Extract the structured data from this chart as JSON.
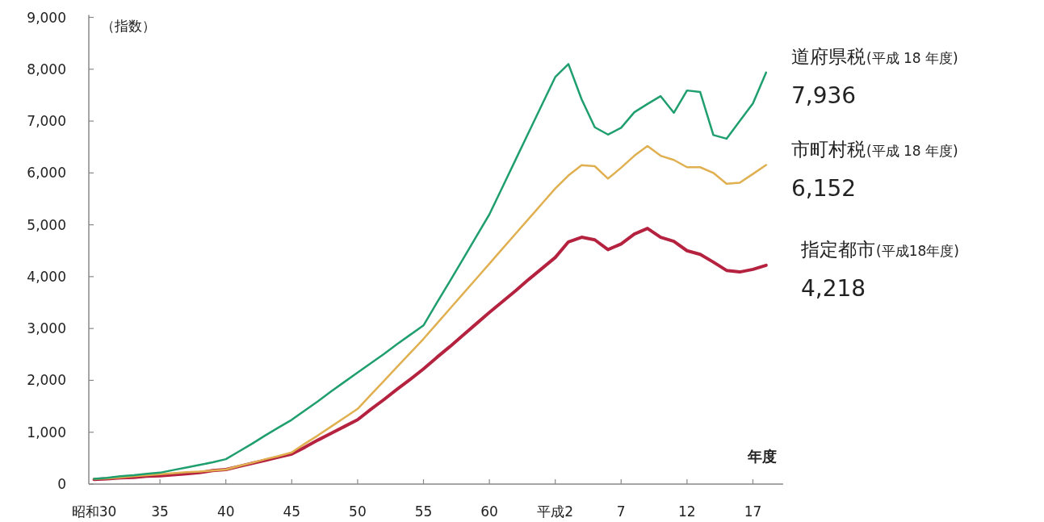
{
  "chart_data": {
    "type": "line",
    "ylabel": "（指数）",
    "xlabel": "年度",
    "categories": [
      "昭和30",
      null,
      null,
      null,
      null,
      "35",
      null,
      null,
      null,
      null,
      "40",
      null,
      null,
      null,
      null,
      "45",
      null,
      null,
      null,
      null,
      "50",
      null,
      null,
      null,
      null,
      "55",
      null,
      null,
      null,
      null,
      "60",
      null,
      null,
      null,
      null,
      "平成2",
      null,
      null,
      null,
      null,
      "7",
      null,
      null,
      null,
      null,
      "12",
      null,
      null,
      null,
      null,
      "17",
      null
    ],
    "ylim": [
      0,
      9000
    ],
    "yticks": [
      0,
      {
        "value": 1000,
        "label": "1,000"
      },
      {
        "value": 2000,
        "label": "2,000"
      },
      {
        "value": 3000,
        "label": "3,000"
      },
      {
        "value": 4000,
        "label": "4,000"
      },
      {
        "value": 5000,
        "label": "5,000"
      },
      {
        "value": 6000,
        "label": "6,000"
      },
      {
        "value": 7000,
        "label": "7,000"
      },
      {
        "value": 8000,
        "label": "8,000"
      },
      {
        "value": 9000,
        "label": "9,000"
      }
    ],
    "grid": false,
    "legend": false,
    "marker": "none",
    "line_style": "solid",
    "series": [
      {
        "name": "道府県税",
        "color": "#1f9e6e",
        "values": [
          100,
          120,
          150,
          170,
          200,
          220,
          270,
          320,
          370,
          420,
          480,
          630,
          780,
          940,
          1090,
          1240,
          1420,
          1600,
          1790,
          1970,
          2150,
          2330,
          2510,
          2700,
          2880,
          3060,
          3490,
          3910,
          4340,
          4770,
          5200,
          5730,
          6260,
          6790,
          7320,
          7850,
          8100,
          7420,
          6880,
          6740,
          6870,
          7170,
          7330,
          7480,
          7160,
          7590,
          7560,
          6730,
          6660,
          7000,
          7340,
          7936
        ],
        "value_labels": [
          null,
          null,
          null,
          null,
          null,
          null,
          null,
          null,
          null,
          null,
          null,
          null,
          null,
          null,
          null,
          null,
          null,
          null,
          null,
          null,
          null,
          null,
          null,
          null,
          null,
          null,
          null,
          null,
          null,
          null,
          null,
          null,
          null,
          null,
          null,
          null,
          null,
          null,
          null,
          null,
          null,
          null,
          null,
          null,
          null,
          null,
          null,
          null,
          null,
          null,
          null,
          "7,936"
        ]
      },
      {
        "name": "市町村税",
        "color": "#e0b050",
        "values": [
          100,
          110,
          130,
          150,
          170,
          190,
          210,
          230,
          240,
          260,
          280,
          350,
          410,
          480,
          540,
          610,
          780,
          940,
          1110,
          1280,
          1450,
          1720,
          1990,
          2260,
          2530,
          2800,
          3090,
          3380,
          3670,
          3960,
          4250,
          4540,
          4830,
          5120,
          5410,
          5700,
          5950,
          6150,
          6130,
          5890,
          6100,
          6330,
          6520,
          6330,
          6250,
          6110,
          6110,
          6000,
          5790,
          5810,
          5980,
          6152
        ],
        "value_labels": [
          null,
          null,
          null,
          null,
          null,
          null,
          null,
          null,
          null,
          null,
          null,
          null,
          null,
          null,
          null,
          null,
          null,
          null,
          null,
          null,
          null,
          null,
          null,
          null,
          null,
          null,
          null,
          null,
          null,
          null,
          null,
          null,
          null,
          null,
          null,
          null,
          null,
          null,
          null,
          null,
          null,
          null,
          null,
          null,
          null,
          null,
          null,
          null,
          null,
          null,
          null,
          "6,152"
        ]
      },
      {
        "name": "指定都市",
        "color": "#b5223f",
        "values": [
          90,
          100,
          120,
          130,
          150,
          160,
          180,
          200,
          220,
          260,
          280,
          340,
          400,
          460,
          520,
          580,
          710,
          850,
          980,
          1110,
          1240,
          1440,
          1630,
          1830,
          2020,
          2220,
          2440,
          2650,
          2870,
          3090,
          3310,
          3520,
          3730,
          3950,
          4160,
          4370,
          4670,
          4760,
          4710,
          4520,
          4630,
          4820,
          4930,
          4760,
          4680,
          4500,
          4430,
          4280,
          4120,
          4090,
          4140,
          4218
        ],
        "value_labels": [
          null,
          null,
          null,
          null,
          null,
          null,
          null,
          null,
          null,
          null,
          null,
          null,
          null,
          null,
          null,
          null,
          null,
          null,
          null,
          null,
          null,
          null,
          null,
          null,
          null,
          null,
          null,
          null,
          null,
          null,
          null,
          null,
          null,
          null,
          null,
          null,
          null,
          null,
          null,
          null,
          null,
          null,
          null,
          null,
          null,
          null,
          null,
          null,
          null,
          null,
          null,
          "4,218"
        ]
      }
    ],
    "annotations": [
      "(平成 18 年度)",
      "(平成 18 年度)",
      "(平成18年度)"
    ]
  }
}
